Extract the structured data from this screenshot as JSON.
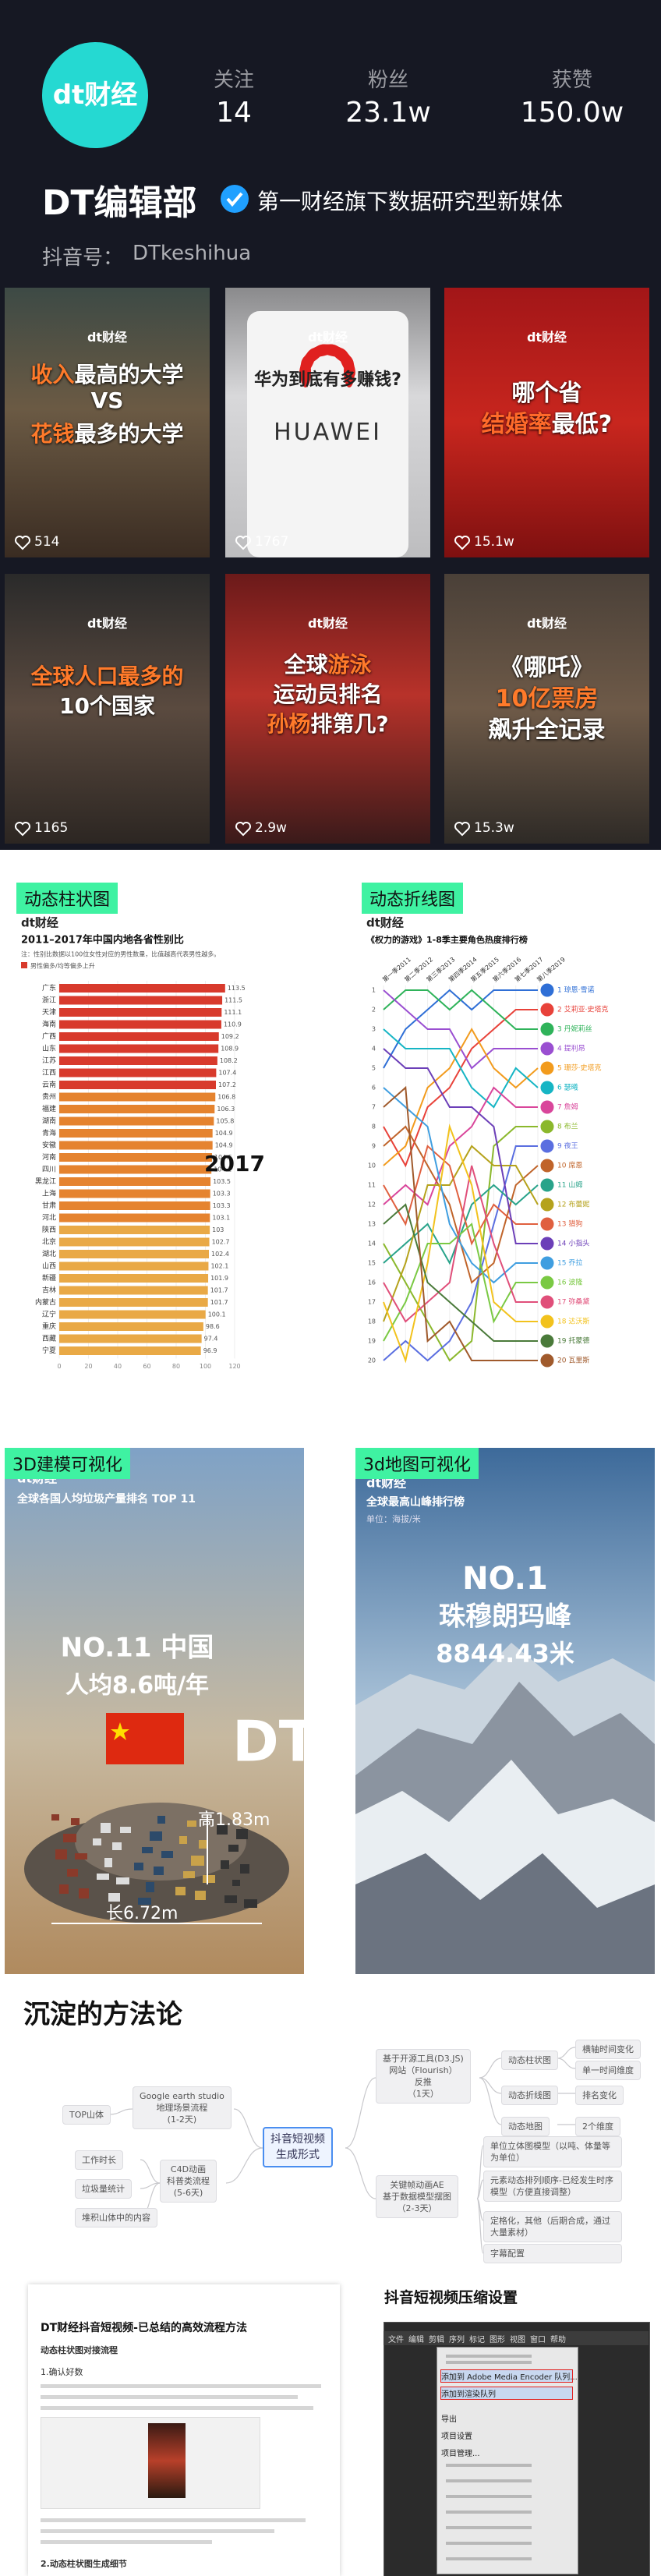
{
  "profile": {
    "logo": "dt财经",
    "stats": [
      {
        "label": "关注",
        "value": "14"
      },
      {
        "label": "粉丝",
        "value": "23.1w"
      },
      {
        "label": "获赞",
        "value": "150.0w"
      }
    ],
    "name": "DT编辑部",
    "verified": "第一财经旗下数据研究型新媒体",
    "id_label": "抖音号：",
    "id": "DTkeshihua"
  },
  "videos": [
    {
      "lines": [
        [
          {
            "text": "收入",
            "color": "#ff7a2a"
          },
          {
            "text": "最高的大学"
          }
        ],
        [
          {
            "text": "VS"
          }
        ],
        [
          {
            "text": "花钱",
            "color": "#ff7a2a"
          },
          {
            "text": "最多的大学"
          }
        ]
      ],
      "likes": "514"
    },
    {
      "lines": [
        [
          {
            "text": "华为到底有多赚钱?"
          }
        ]
      ],
      "brand": "HUAWEI",
      "likes": "1767"
    },
    {
      "lines": [
        [
          {
            "text": "哪个省"
          }
        ],
        [
          {
            "text": "结婚率",
            "color": "#ff6a2a"
          },
          {
            "text": "最低?"
          }
        ]
      ],
      "likes": "15.1w"
    },
    {
      "lines": [
        [
          {
            "text": "全球人口最多的",
            "color": "#ff7a2a"
          }
        ],
        [
          {
            "text": "10个国家"
          }
        ]
      ],
      "likes": "1165"
    },
    {
      "lines": [
        [
          {
            "text": "全球"
          },
          {
            "text": "游泳",
            "color": "#ff7a2a"
          }
        ],
        [
          {
            "text": "运动员排名"
          }
        ],
        [
          {
            "text": "孙杨",
            "color": "#ff7a2a"
          },
          {
            "text": "排第几?"
          }
        ]
      ],
      "likes": "2.9w"
    },
    {
      "lines": [
        [
          {
            "text": "《哪吒》"
          }
        ],
        [
          {
            "text": "10亿票房",
            "color": "#ff7a2a"
          }
        ],
        [
          {
            "text": "飙升全记录"
          }
        ]
      ],
      "likes": "15.3w"
    }
  ],
  "bar_section": {
    "tag": "动态柱状图",
    "chart_data": {
      "type": "bar",
      "logo": "dt财经",
      "title": "2011–2017年中国内地各省性别比",
      "note": "注：性别比数据以100位女性对应的男性数量，比值越高代表男性越多。",
      "legend": "男性偏多/均等偏多上升",
      "year": "2017",
      "categories": [
        "广东",
        "浙江",
        "天津",
        "海南",
        "广西",
        "山东",
        "江苏",
        "江西",
        "云南",
        "贵州",
        "福建",
        "湖南",
        "青海",
        "安徽",
        "河南",
        "四川",
        "黑龙江",
        "上海",
        "甘肃",
        "河北",
        "陕西",
        "北京",
        "湖北",
        "山西",
        "新疆",
        "吉林",
        "内蒙古",
        "辽宁",
        "重庆",
        "西藏",
        "宁夏"
      ],
      "values": [
        113.5,
        111.5,
        111.1,
        110.9,
        109.2,
        108.9,
        108.2,
        107.4,
        107.2,
        106.8,
        106.3,
        105.8,
        104.9,
        104.9,
        104.5,
        104.1,
        103.5,
        103.3,
        103.3,
        103.1,
        103.0,
        102.7,
        102.4,
        102.1,
        101.9,
        101.7,
        101.7,
        100.1,
        98.6,
        97.4,
        96.9
      ],
      "colors": [
        "#d83a2c",
        "#d83a2c",
        "#d83a2c",
        "#d83a2c",
        "#d83a2c",
        "#d83a2c",
        "#d83a2c",
        "#d83a2c",
        "#d83a2c",
        "#e5832f",
        "#e5832f",
        "#e5832f",
        "#e5832f",
        "#e5832f",
        "#e5832f",
        "#e5832f",
        "#e5832f",
        "#e5832f",
        "#e5832f",
        "#e5832f",
        "#e9a946",
        "#e9a946",
        "#e9a946",
        "#e9a946",
        "#e9a946",
        "#e9a946",
        "#e9a946",
        "#e9a946",
        "#e9a946",
        "#e9a946",
        "#e9a946"
      ],
      "xlim": [
        0,
        120
      ],
      "xticks": [
        0,
        20,
        40,
        60,
        80,
        100,
        120
      ]
    }
  },
  "line_section": {
    "tag": "动态折线图",
    "chart_data": {
      "type": "line",
      "logo": "dt财经",
      "title": "《权力的游戏》1-8季主要角色热度排行榜",
      "categories": [
        "第一季2011",
        "第二季2012",
        "第三季2013",
        "第四季2014",
        "第五季2015",
        "第六季2016",
        "第七季2017",
        "第八季2019"
      ],
      "ylim": [
        1,
        20
      ],
      "y_inverted": true,
      "yticks": [
        1,
        2,
        3,
        4,
        5,
        6,
        7,
        8,
        9,
        10,
        11,
        12,
        13,
        14,
        15,
        16,
        17,
        18,
        19,
        20
      ],
      "series": [
        {
          "name": "1 琼恩·雪诺",
          "color": "#2f6fd6",
          "values": [
            5,
            3,
            2,
            1,
            2,
            1,
            1,
            1
          ]
        },
        {
          "name": "2 艾莉亚·史塔克",
          "color": "#e8423a",
          "values": [
            8,
            10,
            7,
            6,
            4,
            3,
            2,
            2
          ]
        },
        {
          "name": "3 丹妮莉丝",
          "color": "#2fb35a",
          "values": [
            2,
            1,
            1,
            2,
            1,
            2,
            3,
            3
          ]
        },
        {
          "name": "4 提利昂",
          "color": "#9a4fd1",
          "values": [
            1,
            2,
            3,
            3,
            5,
            4,
            4,
            4
          ]
        },
        {
          "name": "5 珊莎·史塔克",
          "color": "#f29b1d",
          "values": [
            10,
            9,
            6,
            5,
            3,
            5,
            6,
            5
          ]
        },
        {
          "name": "6 瑟曦",
          "color": "#16b5c4",
          "values": [
            3,
            4,
            4,
            4,
            6,
            7,
            5,
            6
          ]
        },
        {
          "name": "7 詹姆",
          "color": "#d9469b",
          "values": [
            12,
            11,
            12,
            9,
            8,
            6,
            7,
            7
          ]
        },
        {
          "name": "8 布兰",
          "color": "#8bb82c",
          "values": [
            14,
            16,
            18,
            20,
            19,
            9,
            8,
            8
          ]
        },
        {
          "name": "9 夜王",
          "color": "#5a6ee0",
          "values": [
            20,
            19,
            20,
            19,
            17,
            13,
            9,
            9
          ]
        },
        {
          "name": "10 席恩",
          "color": "#c0642a",
          "values": [
            9,
            8,
            10,
            12,
            16,
            15,
            11,
            10
          ]
        },
        {
          "name": "11 山姆",
          "color": "#29a38a",
          "values": [
            15,
            14,
            13,
            15,
            12,
            11,
            12,
            11
          ]
        },
        {
          "name": "12 布蕾妮",
          "color": "#b5a21c",
          "values": [
            18,
            15,
            11,
            11,
            9,
            10,
            10,
            12
          ]
        },
        {
          "name": "13 猎狗",
          "color": "#e0603f",
          "values": [
            11,
            13,
            9,
            10,
            14,
            12,
            13,
            13
          ]
        },
        {
          "name": "14 小指头",
          "color": "#6c3fb8",
          "values": [
            4,
            5,
            5,
            7,
            7,
            8,
            14,
            14
          ]
        },
        {
          "name": "15 乔拉",
          "color": "#3f9ee0",
          "values": [
            6,
            7,
            8,
            13,
            15,
            16,
            15,
            15
          ]
        },
        {
          "name": "16 波隆",
          "color": "#7ac943",
          "values": [
            19,
            17,
            14,
            14,
            13,
            18,
            16,
            16
          ]
        },
        {
          "name": "17 弥桑黛",
          "color": "#e04f7a",
          "values": [
            16,
            18,
            17,
            16,
            10,
            14,
            17,
            17
          ]
        },
        {
          "name": "18 达沃斯",
          "color": "#f2c21d",
          "values": [
            17,
            20,
            15,
            8,
            11,
            17,
            18,
            18
          ]
        },
        {
          "name": "19 托蒙德",
          "color": "#4a7a3a",
          "values": [
            13,
            12,
            16,
            17,
            18,
            19,
            19,
            19
          ]
        },
        {
          "name": "20 瓦里斯",
          "color": "#a05a2c",
          "values": [
            7,
            6,
            19,
            18,
            20,
            20,
            20,
            20
          ]
        }
      ]
    }
  },
  "model_section": {
    "tag": "3D建模可视化",
    "logo": "dt财经",
    "title": "全球各国人均垃圾产量排名 TOP 11",
    "rank": "NO.11 中国",
    "amount": "人均8.6吨/年",
    "brand": "DT",
    "height": "高1.83m",
    "length": "长6.72m"
  },
  "map_section": {
    "tag": "3d地图可视化",
    "logo": "dt财经",
    "title": "全球最高山峰排行榜",
    "unit": "单位：海拔/米",
    "rank": "NO.1",
    "peak": "珠穆朗玛峰",
    "altitude": "8844.43米"
  },
  "methodology": {
    "title": "沉淀的方法论",
    "center": [
      "抖音短视频",
      "生成形式"
    ],
    "left": [
      {
        "label": [
          "Google earth studio",
          "地理场景流程",
          "(1-2天)"
        ],
        "children": [
          "TOP山体"
        ]
      },
      {
        "label": [
          "C4D动画",
          "科普类流程",
          "(5-6天)"
        ],
        "children": [
          "工作时长",
          "垃圾量统计",
          "堆积山体中的内容"
        ]
      }
    ],
    "right": [
      {
        "label": [
          "基于开源工具(D3.JS)",
          "网站（Flourish）",
          "反推",
          "（1天）"
        ],
        "children": [
          {
            "label": "动态柱状图",
            "children": [
              "横轴时间变化",
              "单一时间维度"
            ]
          },
          {
            "label": "动态折线图",
            "children": [
              "排名变化"
            ]
          },
          {
            "label": "动态地图",
            "children": [
              "2个维度"
            ]
          }
        ]
      },
      {
        "label": [
          "关键帧动画AE",
          "基于数据模型摆图",
          "（2-3天）"
        ],
        "children": [
          "单位立体图模型（以吨、体量等为单位）",
          "元素动态排列顺序-已经发生时序模型（方便直接调整）",
          "定格化，其他（后期合成，通过大量素材）",
          "字幕配置"
        ]
      }
    ]
  },
  "docs": {
    "title": "DT财经抖音短视频-已总结的高效流程方法",
    "subtitle": "动态柱状图对接流程",
    "step1": "1.确认好数",
    "step2": "2.动态柱状图生成细节",
    "settings_title": "抖音短视频压缩设置",
    "menubar": [
      "文件",
      "编辑",
      "剪辑",
      "序列",
      "标记",
      "图形",
      "视图",
      "窗口",
      "帮助"
    ],
    "menu_items": [
      "添加到 Adobe Media Encoder 队列...",
      "添加到渲染队列",
      "导出",
      "项目设置",
      "项目管理..."
    ]
  }
}
